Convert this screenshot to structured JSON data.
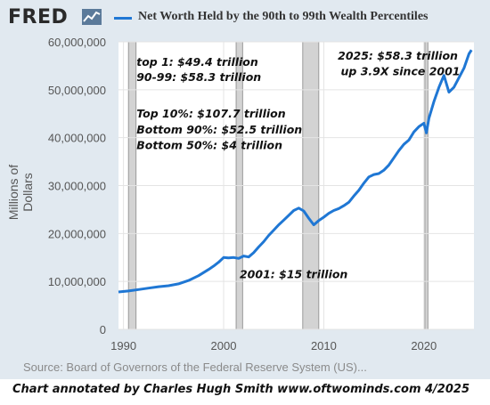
{
  "header": {
    "logo_text": "FRED",
    "legend_label": "Net Worth Held by the 90th to 99th Wealth Percentiles",
    "series_color": "#1f77d4",
    "recession_color": "#d3d3d3",
    "icons": [
      "fred-chart-icon"
    ]
  },
  "footer": {
    "source": "Source: Board of Governors of the Federal Reserve System (US)...",
    "credit": "Chart annotated by Charles Hugh Smith  www.oftwominds.com  4/2025"
  },
  "chart_data": {
    "type": "line",
    "title": "",
    "xlabel": "",
    "ylabel": "Millions of Dollars",
    "xlim": [
      1989.5,
      2025.0
    ],
    "ylim": [
      0,
      60000000
    ],
    "grid": true,
    "legend": "top",
    "y_ticks": [
      "0",
      "10,000,000",
      "20,000,000",
      "30,000,000",
      "40,000,000",
      "50,000,000",
      "60,000,000"
    ],
    "y_tick_values": [
      0,
      10000000,
      20000000,
      30000000,
      40000000,
      50000000,
      60000000
    ],
    "x_ticks": [
      "1990",
      "2000",
      "2010",
      "2020"
    ],
    "x_tick_values": [
      1990,
      2000,
      2010,
      2020
    ],
    "recessions": [
      [
        1990.5,
        1991.25
      ],
      [
        2001.25,
        2001.9
      ],
      [
        2007.9,
        2009.5
      ],
      [
        2020.1,
        2020.4
      ]
    ],
    "series": [
      {
        "name": "Net Worth Held by the 90th to 99th Wealth Percentiles",
        "x": [
          1989.5,
          1990.5,
          1991.5,
          1992.5,
          1993.5,
          1994.5,
          1995.5,
          1996.5,
          1997.5,
          1998.5,
          1999.0,
          1999.5,
          2000.0,
          2000.5,
          2001.0,
          2001.5,
          2002.0,
          2002.5,
          2003.0,
          2003.5,
          2004.0,
          2004.5,
          2005.0,
          2005.5,
          2006.0,
          2006.5,
          2007.0,
          2007.5,
          2008.0,
          2008.5,
          2009.0,
          2009.5,
          2010.0,
          2010.5,
          2011.0,
          2011.5,
          2012.0,
          2012.5,
          2013.0,
          2013.5,
          2014.0,
          2014.5,
          2015.0,
          2015.5,
          2016.0,
          2016.5,
          2017.0,
          2017.5,
          2018.0,
          2018.5,
          2019.0,
          2019.5,
          2020.0,
          2020.25,
          2020.5,
          2021.0,
          2021.5,
          2022.0,
          2022.5,
          2023.0,
          2023.5,
          2024.0,
          2024.5,
          2024.75
        ],
        "values": [
          7800000,
          8000000,
          8300000,
          8600000,
          8900000,
          9100000,
          9500000,
          10200000,
          11200000,
          12500000,
          13200000,
          14000000,
          15000000,
          14900000,
          15000000,
          14800000,
          15300000,
          15100000,
          16000000,
          17200000,
          18300000,
          19600000,
          20700000,
          21800000,
          22800000,
          23800000,
          24800000,
          25300000,
          24700000,
          23200000,
          21800000,
          22700000,
          23400000,
          24200000,
          24800000,
          25200000,
          25800000,
          26500000,
          27800000,
          29000000,
          30500000,
          31800000,
          32300000,
          32500000,
          33200000,
          34300000,
          35800000,
          37300000,
          38600000,
          39500000,
          41200000,
          42300000,
          43000000,
          41000000,
          44000000,
          47500000,
          50500000,
          53000000,
          49500000,
          50500000,
          52500000,
          54500000,
          57500000,
          58300000
        ]
      }
    ],
    "annotations": [
      {
        "text": "top 1:  $49.4 trillion",
        "x": 1991.3,
        "y": 55000000
      },
      {
        "text": "90-99: $58.3 trillion",
        "x": 1991.3,
        "y": 51800000
      },
      {
        "text": "Top 10%: $107.7 trillion",
        "x": 1991.3,
        "y": 44200000
      },
      {
        "text": "Bottom 90%: $52.5 trillion",
        "x": 1991.3,
        "y": 40900000
      },
      {
        "text": "Bottom 50%: $4 trillion",
        "x": 1991.3,
        "y": 37600000
      },
      {
        "text": "2025: $58.3 trillion",
        "x": 2011.4,
        "y": 56300000
      },
      {
        "text": "up 3.9X since 2001",
        "x": 2011.7,
        "y": 53000000
      },
      {
        "text": "2001: $15 trillion",
        "x": 2001.6,
        "y": 10700000
      }
    ]
  }
}
